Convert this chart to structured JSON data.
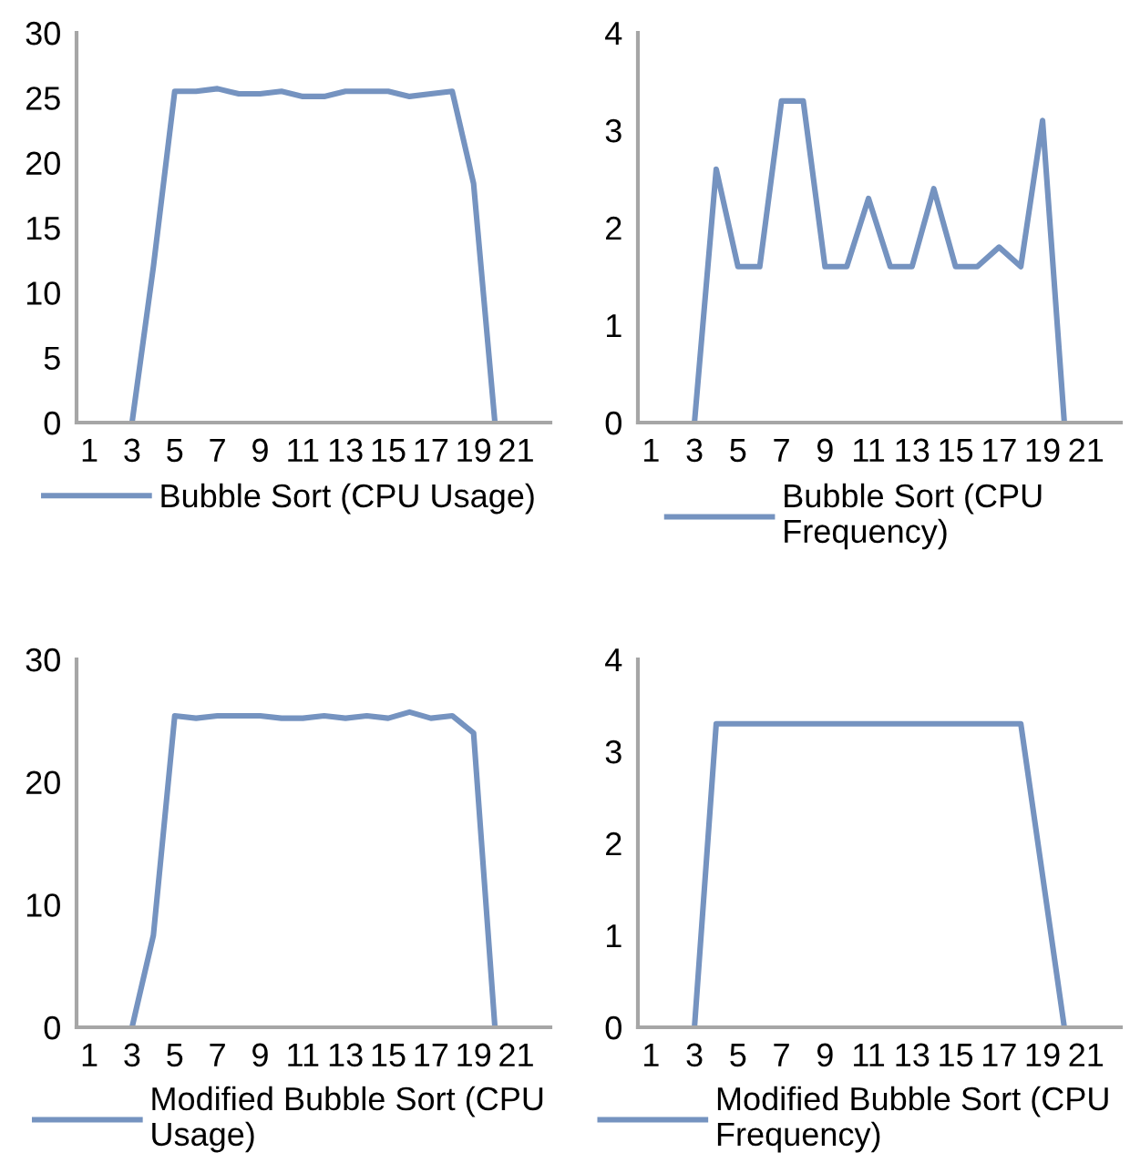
{
  "chart_data": [
    {
      "type": "line",
      "categories": [
        "1",
        null,
        "3",
        null,
        "5",
        null,
        "7",
        null,
        "9",
        null,
        "11",
        null,
        "13",
        null,
        "15",
        null,
        "17",
        null,
        "19",
        null,
        "21",
        null
      ],
      "ylim": [
        0,
        30
      ],
      "yticks": [
        0,
        5,
        10,
        15,
        20,
        25,
        30
      ],
      "grid": false,
      "legend": "bottom",
      "marker": "none",
      "line_style": "solid",
      "series": [
        {
          "name": "Bubble Sort (CPU Usage)",
          "color": "#7593c0",
          "values": [
            null,
            null,
            0,
            12,
            25.5,
            25.5,
            25.7,
            25.3,
            25.3,
            25.5,
            25.1,
            25.1,
            25.5,
            25.5,
            25.5,
            25.1,
            25.3,
            25.5,
            18.4,
            0,
            null,
            null
          ]
        }
      ]
    },
    {
      "type": "line",
      "categories": [
        "1",
        null,
        "3",
        null,
        "5",
        null,
        "7",
        null,
        "9",
        null,
        "11",
        null,
        "13",
        null,
        "15",
        null,
        "17",
        null,
        "19",
        null,
        "21",
        null
      ],
      "ylim": [
        0,
        4
      ],
      "yticks": [
        0,
        1,
        2,
        3,
        4
      ],
      "grid": false,
      "legend": "bottom",
      "marker": "none",
      "line_style": "solid",
      "series": [
        {
          "name": "Bubble Sort (CPU Frequency)",
          "color": "#7593c0",
          "values": [
            null,
            null,
            0,
            2.6,
            1.6,
            1.6,
            3.3,
            3.3,
            1.6,
            1.6,
            2.3,
            1.6,
            1.6,
            2.4,
            1.6,
            1.6,
            1.8,
            1.6,
            3.1,
            0,
            null,
            null
          ]
        }
      ]
    },
    {
      "type": "line",
      "categories": [
        "1",
        null,
        "3",
        null,
        "5",
        null,
        "7",
        null,
        "9",
        null,
        "11",
        null,
        "13",
        null,
        "15",
        null,
        "17",
        null,
        "19",
        null,
        "21",
        null
      ],
      "ylim": [
        0,
        30
      ],
      "yticks": [
        0,
        10,
        20,
        30
      ],
      "grid": false,
      "legend": "bottom",
      "marker": "none",
      "line_style": "solid",
      "series": [
        {
          "name": "Modified Bubble Sort (CPU Usage)",
          "color": "#7593c0",
          "values": [
            null,
            null,
            0,
            7.5,
            25.4,
            25.2,
            25.4,
            25.4,
            25.4,
            25.2,
            25.2,
            25.4,
            25.2,
            25.4,
            25.2,
            25.7,
            25.2,
            25.4,
            24,
            0,
            null,
            null
          ]
        }
      ]
    },
    {
      "type": "line",
      "categories": [
        "1",
        null,
        "3",
        null,
        "5",
        null,
        "7",
        null,
        "9",
        null,
        "11",
        null,
        "13",
        null,
        "15",
        null,
        "17",
        null,
        "19",
        null,
        "21",
        null
      ],
      "ylim": [
        0,
        4
      ],
      "yticks": [
        0,
        1,
        2,
        3,
        4
      ],
      "grid": false,
      "legend": "bottom",
      "marker": "none",
      "line_style": "solid",
      "series": [
        {
          "name": "Modified Bubble Sort (CPU Frequency)",
          "color": "#7593c0",
          "values": [
            null,
            null,
            0,
            3.3,
            3.3,
            3.3,
            3.3,
            3.3,
            3.3,
            3.3,
            3.3,
            3.3,
            3.3,
            3.3,
            3.3,
            3.3,
            3.3,
            3.3,
            1.65,
            0,
            null,
            null
          ]
        }
      ]
    }
  ]
}
